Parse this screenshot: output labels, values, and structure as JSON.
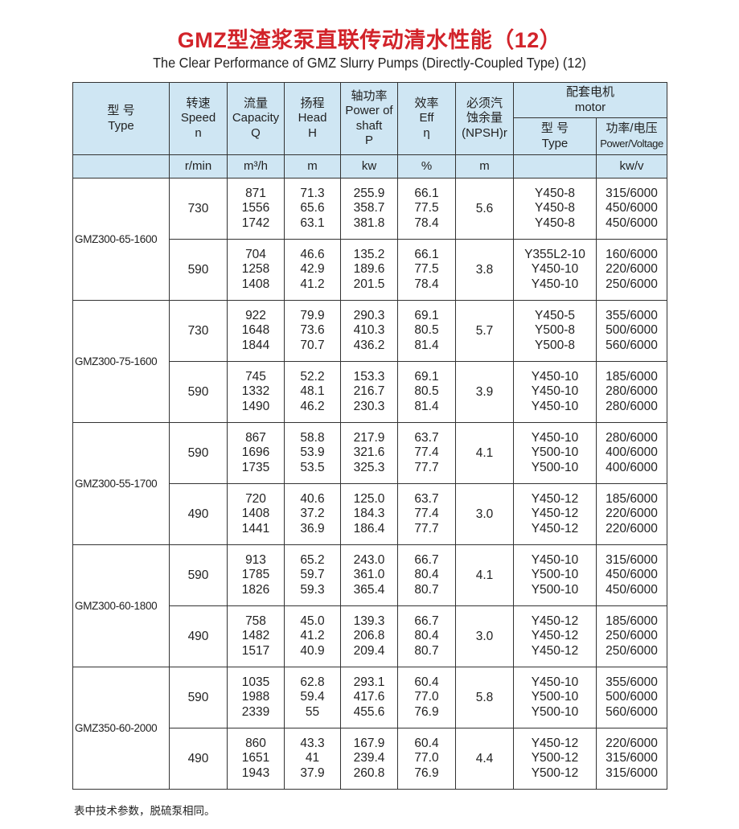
{
  "title": "GMZ型渣浆泵直联传动清水性能（12）",
  "subtitle": "The Clear Performance of GMZ Slurry Pumps (Directly-Coupled Type) (12)",
  "colors": {
    "title": "#d2232a",
    "header_bg": "#cfe6f3",
    "border": "#333333"
  },
  "header": {
    "type_cn": "型 号",
    "type_en": "Type",
    "speed_cn": "转速",
    "speed_en": "Speed",
    "speed_sym": "n",
    "speed_unit": "r/min",
    "capacity_cn": "流量",
    "capacity_en": "Capacity",
    "capacity_sym": "Q",
    "capacity_unit": "m³/h",
    "head_cn": "扬程",
    "head_en": "Head",
    "head_sym": "H",
    "head_unit": "m",
    "power_cn": "轴功率",
    "power_en1": "Power of",
    "power_en2": "shaft",
    "power_sym": "P",
    "power_unit": "kw",
    "eff_cn": "效率",
    "eff_en": "Eff",
    "eff_sym": "η",
    "eff_unit": "%",
    "npsh_cn1": "必须汽",
    "npsh_cn2": "蚀余量",
    "npsh_en": "(NPSH)r",
    "npsh_unit": "m",
    "motor_cn": "配套电机",
    "motor_en": "motor",
    "motor_type_cn": "型 号",
    "motor_type_en": "Type",
    "motor_pv_cn": "功率/电压",
    "motor_pv_en": "Power/Voltage",
    "motor_pv_unit": "kw/v"
  },
  "pumps": [
    {
      "model": "GMZ300-65-1600",
      "groups": [
        {
          "speed": "730",
          "capacity": [
            "871",
            "1556",
            "1742"
          ],
          "head": [
            "71.3",
            "65.6",
            "63.1"
          ],
          "power": [
            "255.9",
            "358.7",
            "381.8"
          ],
          "eff": [
            "66.1",
            "77.5",
            "78.4"
          ],
          "npsh": "5.6",
          "motor_type": [
            "Y450-8",
            "Y450-8",
            "Y450-8"
          ],
          "motor_pv": [
            "315/6000",
            "450/6000",
            "450/6000"
          ]
        },
        {
          "speed": "590",
          "capacity": [
            "704",
            "1258",
            "1408"
          ],
          "head": [
            "46.6",
            "42.9",
            "41.2"
          ],
          "power": [
            "135.2",
            "189.6",
            "201.5"
          ],
          "eff": [
            "66.1",
            "77.5",
            "78.4"
          ],
          "npsh": "3.8",
          "motor_type": [
            "Y355L2-10",
            "Y450-10",
            "Y450-10"
          ],
          "motor_pv": [
            "160/6000",
            "220/6000",
            "250/6000"
          ]
        }
      ]
    },
    {
      "model": "GMZ300-75-1600",
      "groups": [
        {
          "speed": "730",
          "capacity": [
            "922",
            "1648",
            "1844"
          ],
          "head": [
            "79.9",
            "73.6",
            "70.7"
          ],
          "power": [
            "290.3",
            "410.3",
            "436.2"
          ],
          "eff": [
            "69.1",
            "80.5",
            "81.4"
          ],
          "npsh": "5.7",
          "motor_type": [
            "Y450-5",
            "Y500-8",
            "Y500-8"
          ],
          "motor_pv": [
            "355/6000",
            "500/6000",
            "560/6000"
          ]
        },
        {
          "speed": "590",
          "capacity": [
            "745",
            "1332",
            "1490"
          ],
          "head": [
            "52.2",
            "48.1",
            "46.2"
          ],
          "power": [
            "153.3",
            "216.7",
            "230.3"
          ],
          "eff": [
            "69.1",
            "80.5",
            "81.4"
          ],
          "npsh": "3.9",
          "motor_type": [
            "Y450-10",
            "Y450-10",
            "Y450-10"
          ],
          "motor_pv": [
            "185/6000",
            "280/6000",
            "280/6000"
          ]
        }
      ]
    },
    {
      "model": "GMZ300-55-1700",
      "groups": [
        {
          "speed": "590",
          "capacity": [
            "867",
            "1696",
            "1735"
          ],
          "head": [
            "58.8",
            "53.9",
            "53.5"
          ],
          "power": [
            "217.9",
            "321.6",
            "325.3"
          ],
          "eff": [
            "63.7",
            "77.4",
            "77.7"
          ],
          "npsh": "4.1",
          "motor_type": [
            "Y450-10",
            "Y500-10",
            "Y500-10"
          ],
          "motor_pv": [
            "280/6000",
            "400/6000",
            "400/6000"
          ]
        },
        {
          "speed": "490",
          "capacity": [
            "720",
            "1408",
            "1441"
          ],
          "head": [
            "40.6",
            "37.2",
            "36.9"
          ],
          "power": [
            "125.0",
            "184.3",
            "186.4"
          ],
          "eff": [
            "63.7",
            "77.4",
            "77.7"
          ],
          "npsh": "3.0",
          "motor_type": [
            "Y450-12",
            "Y450-12",
            "Y450-12"
          ],
          "motor_pv": [
            "185/6000",
            "220/6000",
            "220/6000"
          ]
        }
      ]
    },
    {
      "model": "GMZ300-60-1800",
      "groups": [
        {
          "speed": "590",
          "capacity": [
            "913",
            "1785",
            "1826"
          ],
          "head": [
            "65.2",
            "59.7",
            "59.3"
          ],
          "power": [
            "243.0",
            "361.0",
            "365.4"
          ],
          "eff": [
            "66.7",
            "80.4",
            "80.7"
          ],
          "npsh": "4.1",
          "motor_type": [
            "Y450-10",
            "Y500-10",
            "Y500-10"
          ],
          "motor_pv": [
            "315/6000",
            "450/6000",
            "450/6000"
          ]
        },
        {
          "speed": "490",
          "capacity": [
            "758",
            "1482",
            "1517"
          ],
          "head": [
            "45.0",
            "41.2",
            "40.9"
          ],
          "power": [
            "139.3",
            "206.8",
            "209.4"
          ],
          "eff": [
            "66.7",
            "80.4",
            "80.7"
          ],
          "npsh": "3.0",
          "motor_type": [
            "Y450-12",
            "Y450-12",
            "Y450-12"
          ],
          "motor_pv": [
            "185/6000",
            "250/6000",
            "250/6000"
          ]
        }
      ]
    },
    {
      "model": "GMZ350-60-2000",
      "groups": [
        {
          "speed": "590",
          "capacity": [
            "1035",
            "1988",
            "2339"
          ],
          "head": [
            "62.8",
            "59.4",
            "55"
          ],
          "power": [
            "293.1",
            "417.6",
            "455.6"
          ],
          "eff": [
            "60.4",
            "77.0",
            "76.9"
          ],
          "npsh": "5.8",
          "motor_type": [
            "Y450-10",
            "Y500-10",
            "Y500-10"
          ],
          "motor_pv": [
            "355/6000",
            "500/6000",
            "560/6000"
          ]
        },
        {
          "speed": "490",
          "capacity": [
            "860",
            "1651",
            "1943"
          ],
          "head": [
            "43.3",
            "41",
            "37.9"
          ],
          "power": [
            "167.9",
            "239.4",
            "260.8"
          ],
          "eff": [
            "60.4",
            "77.0",
            "76.9"
          ],
          "npsh": "4.4",
          "motor_type": [
            "Y450-12",
            "Y500-12",
            "Y500-12"
          ],
          "motor_pv": [
            "220/6000",
            "315/6000",
            "315/6000"
          ]
        }
      ]
    }
  ],
  "footnote": "表中技术参数，脱硫泵相同。"
}
